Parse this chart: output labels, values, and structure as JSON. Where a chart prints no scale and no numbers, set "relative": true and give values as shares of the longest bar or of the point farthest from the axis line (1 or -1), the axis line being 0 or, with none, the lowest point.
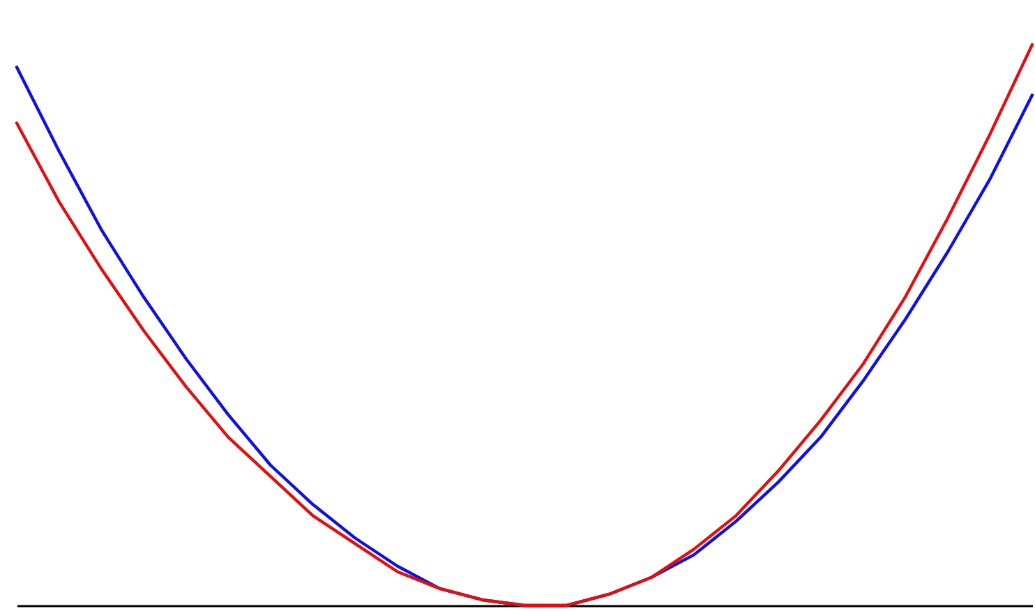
{
  "chart_data": {
    "type": "line",
    "relative": true,
    "legend": false,
    "tick_labels": false,
    "grid": false,
    "marker": "none",
    "line_style": "solid",
    "categories": [
      null,
      null,
      null,
      null,
      null,
      null,
      null,
      null,
      null,
      null,
      null,
      null,
      null,
      null,
      null,
      null,
      null,
      null,
      null,
      null,
      null,
      null,
      null,
      null,
      null
    ],
    "series": [
      {
        "color": "#1010e0",
        "values": [
          0.96,
          0.81,
          0.67,
          0.55,
          0.44,
          0.34,
          0.25,
          0.18,
          0.12,
          0.07,
          0.03,
          0.01,
          0.0,
          0.0,
          0.02,
          0.05,
          0.09,
          0.15,
          0.22,
          0.3,
          0.4,
          0.51,
          0.63,
          0.76,
          0.91
        ]
      },
      {
        "color": "#e01010",
        "values": [
          0.86,
          0.72,
          0.6,
          0.49,
          0.39,
          0.3,
          0.23,
          0.16,
          0.11,
          0.06,
          0.03,
          0.01,
          0.0,
          0.0,
          0.02,
          0.05,
          0.1,
          0.16,
          0.24,
          0.33,
          0.43,
          0.55,
          0.69,
          0.84,
          1
        ]
      }
    ]
  }
}
